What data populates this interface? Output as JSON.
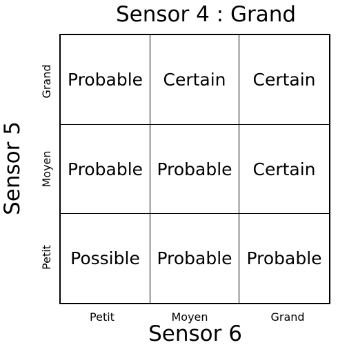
{
  "title": "Sensor 4 : Grand",
  "y_axis": {
    "title": "Sensor 5",
    "labels": [
      "Grand",
      "Moyen",
      "Petit"
    ]
  },
  "x_axis": {
    "title": "Sensor 6",
    "labels": [
      "Petit",
      "Moyen",
      "Grand"
    ]
  },
  "matrix": [
    [
      "Probable",
      "Certain",
      "Certain"
    ],
    [
      "Probable",
      "Probable",
      "Certain"
    ],
    [
      "Possible",
      "Probable",
      "Probable"
    ]
  ]
}
